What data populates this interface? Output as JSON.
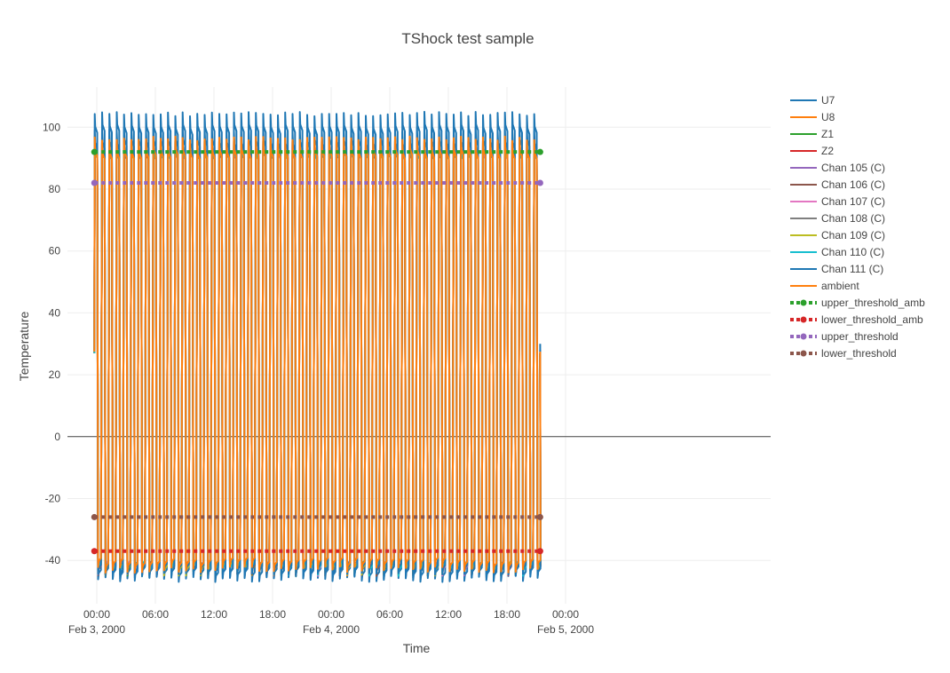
{
  "chart_data": {
    "type": "line",
    "title": "TShock test sample",
    "xlabel": "Time",
    "ylabel": "Temperature",
    "ylim": [
      -54,
      113
    ],
    "xlim_hours": [
      -3,
      69
    ],
    "x_start": "2000-02-03 00:00",
    "x_ticks": [
      {
        "hour": 0,
        "line1": "00:00",
        "line2": "Feb 3, 2000"
      },
      {
        "hour": 6,
        "line1": "06:00",
        "line2": ""
      },
      {
        "hour": 12,
        "line1": "12:00",
        "line2": ""
      },
      {
        "hour": 18,
        "line1": "18:00",
        "line2": ""
      },
      {
        "hour": 24,
        "line1": "00:00",
        "line2": "Feb 4, 2000"
      },
      {
        "hour": 30,
        "line1": "06:00",
        "line2": ""
      },
      {
        "hour": 36,
        "line1": "12:00",
        "line2": ""
      },
      {
        "hour": 42,
        "line1": "18:00",
        "line2": ""
      },
      {
        "hour": 48,
        "line1": "00:00",
        "line2": "Feb 5, 2000"
      }
    ],
    "y_ticks": [
      -40,
      -20,
      0,
      20,
      40,
      60,
      80,
      100
    ],
    "grid": true,
    "legend_position": "right",
    "cycle": {
      "start_hour": -0.25,
      "end_hour": 45.4,
      "period_hours": 0.75,
      "cycles": 61
    },
    "series": [
      {
        "name": "U7",
        "color": "#1f77b4",
        "style": "solid",
        "high": 105,
        "low": -45
      },
      {
        "name": "U8",
        "color": "#ff7f0e",
        "style": "solid",
        "high": 97,
        "low": -43
      },
      {
        "name": "Z1",
        "color": "#2ca02c",
        "style": "solid",
        "high": 97,
        "low": -43
      },
      {
        "name": "Z2",
        "color": "#d62728",
        "style": "solid",
        "high": 97,
        "low": -43
      },
      {
        "name": "Chan 105 (C)",
        "color": "#9467bd",
        "style": "solid",
        "high": 97,
        "low": -43
      },
      {
        "name": "Chan 106 (C)",
        "color": "#8c564b",
        "style": "solid",
        "high": 97,
        "low": -43
      },
      {
        "name": "Chan 107 (C)",
        "color": "#e377c2",
        "style": "solid",
        "high": 97,
        "low": -43
      },
      {
        "name": "Chan 108 (C)",
        "color": "#7f7f7f",
        "style": "solid",
        "high": 97,
        "low": -43
      },
      {
        "name": "Chan 109 (C)",
        "color": "#bcbd22",
        "style": "solid",
        "high": 97,
        "low": -43
      },
      {
        "name": "Chan 110 (C)",
        "color": "#17becf",
        "style": "solid",
        "high": 97,
        "low": -43
      },
      {
        "name": "Chan 111 (C)",
        "color": "#1f77b4",
        "style": "solid",
        "high": 100,
        "low": -44
      },
      {
        "name": "ambient",
        "color": "#ff7f0e",
        "style": "solid",
        "high": 97,
        "low": -42
      },
      {
        "name": "upper_threshold_amb",
        "color": "#2ca02c",
        "style": "dotted",
        "value": 92
      },
      {
        "name": "lower_threshold_amb",
        "color": "#d62728",
        "style": "dotted",
        "value": -37
      },
      {
        "name": "upper_threshold",
        "color": "#9467bd",
        "style": "dotted",
        "value": 82
      },
      {
        "name": "lower_threshold",
        "color": "#8c564b",
        "style": "dotted",
        "value": -26
      }
    ]
  }
}
